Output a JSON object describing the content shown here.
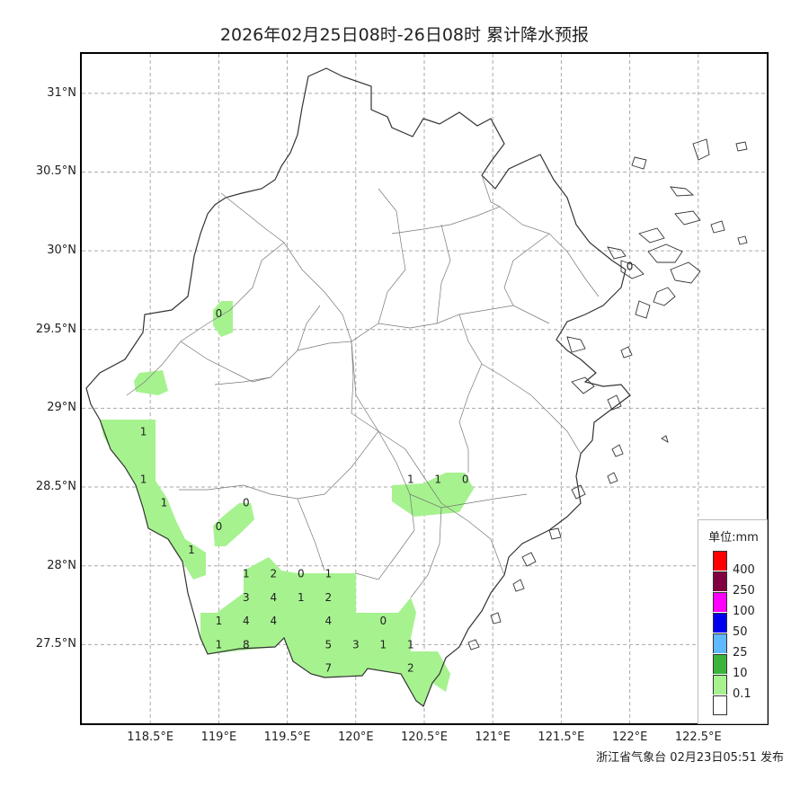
{
  "title": "2026年02月25日08时-26日08时 累计降水预报",
  "footer": "浙江省气象台 02月23日05:51 发布",
  "map": {
    "lon_range": [
      118.0,
      123.0
    ],
    "lat_range": [
      27.0,
      31.25
    ],
    "lon_ticks": [
      "118.5°E",
      "119°E",
      "119.5°E",
      "120°E",
      "120.5°E",
      "121°E",
      "121.5°E",
      "122°E",
      "122.5°E"
    ],
    "lat_ticks": [
      "31°N",
      "30.5°N",
      "30°N",
      "29.5°N",
      "29°N",
      "28.5°N",
      "28°N",
      "27.5°N"
    ],
    "grid": true,
    "precip_values": [
      {
        "v": "0",
        "lon": 119.0,
        "lat": 29.6
      },
      {
        "v": "1",
        "lon": 118.45,
        "lat": 28.85
      },
      {
        "v": "1",
        "lon": 118.45,
        "lat": 28.55
      },
      {
        "v": "1",
        "lon": 118.6,
        "lat": 28.4
      },
      {
        "v": "1",
        "lon": 118.8,
        "lat": 28.1
      },
      {
        "v": "0",
        "lon": 119.2,
        "lat": 28.4
      },
      {
        "v": "0",
        "lon": 119.0,
        "lat": 28.25
      },
      {
        "v": "1",
        "lon": 120.4,
        "lat": 28.55
      },
      {
        "v": "1",
        "lon": 120.6,
        "lat": 28.55
      },
      {
        "v": "0",
        "lon": 120.8,
        "lat": 28.55
      },
      {
        "v": "1",
        "lon": 119.2,
        "lat": 27.95
      },
      {
        "v": "2",
        "lon": 119.4,
        "lat": 27.95
      },
      {
        "v": "0",
        "lon": 119.6,
        "lat": 27.95
      },
      {
        "v": "1",
        "lon": 119.8,
        "lat": 27.95
      },
      {
        "v": "3",
        "lon": 119.2,
        "lat": 27.8
      },
      {
        "v": "4",
        "lon": 119.4,
        "lat": 27.8
      },
      {
        "v": "1",
        "lon": 119.6,
        "lat": 27.8
      },
      {
        "v": "2",
        "lon": 119.8,
        "lat": 27.8
      },
      {
        "v": "1",
        "lon": 119.0,
        "lat": 27.65
      },
      {
        "v": "4",
        "lon": 119.2,
        "lat": 27.65
      },
      {
        "v": "4",
        "lon": 119.4,
        "lat": 27.65
      },
      {
        "v": "4",
        "lon": 119.8,
        "lat": 27.65
      },
      {
        "v": "0",
        "lon": 120.2,
        "lat": 27.65
      },
      {
        "v": "1",
        "lon": 119.0,
        "lat": 27.5
      },
      {
        "v": "8",
        "lon": 119.2,
        "lat": 27.5
      },
      {
        "v": "5",
        "lon": 119.8,
        "lat": 27.5
      },
      {
        "v": "3",
        "lon": 120.0,
        "lat": 27.5
      },
      {
        "v": "1",
        "lon": 120.2,
        "lat": 27.5
      },
      {
        "v": "1",
        "lon": 120.4,
        "lat": 27.5
      },
      {
        "v": "7",
        "lon": 119.8,
        "lat": 27.35
      },
      {
        "v": "2",
        "lon": 120.4,
        "lat": 27.35
      },
      {
        "v": "0",
        "lon": 122.0,
        "lat": 29.9
      }
    ]
  },
  "legend": {
    "title": "单位:mm",
    "items": [
      {
        "label": "400",
        "color": "#ff0000"
      },
      {
        "label": "250",
        "color": "#800040"
      },
      {
        "label": "100",
        "color": "#ff00ff"
      },
      {
        "label": "50",
        "color": "#0000ee"
      },
      {
        "label": "25",
        "color": "#60b8ff"
      },
      {
        "label": "10",
        "color": "#3cb43c"
      },
      {
        "label": "0.1",
        "color": "#a6f28f"
      },
      {
        "label": "",
        "color": "#ffffff"
      }
    ]
  },
  "colors": {
    "light_rain": "#a6f28f",
    "grid": "#aaaaaa",
    "border": "#555555"
  }
}
